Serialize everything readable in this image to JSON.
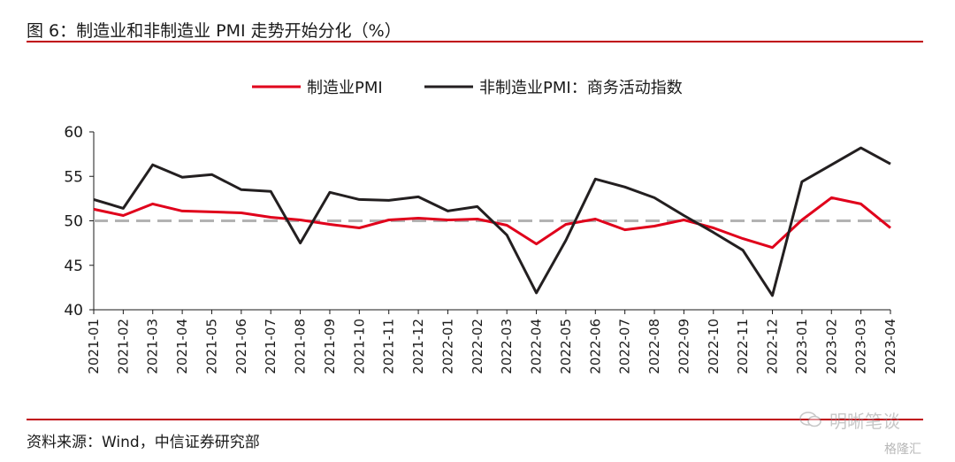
{
  "header": {
    "title": "图 6：制造业和非制造业 PMI 走势开始分化（%）"
  },
  "footer": {
    "source": "资料来源：Wind，中信证券研究部"
  },
  "watermark": {
    "text": "明晰笔谈",
    "sub": "格隆汇"
  },
  "chart_data": {
    "type": "line",
    "x": [
      "2021-01",
      "2021-02",
      "2021-03",
      "2021-04",
      "2021-05",
      "2021-06",
      "2021-07",
      "2021-08",
      "2021-09",
      "2021-10",
      "2021-11",
      "2021-12",
      "2022-01",
      "2022-02",
      "2022-03",
      "2022-04",
      "2022-05",
      "2022-06",
      "2022-07",
      "2022-08",
      "2022-09",
      "2022-10",
      "2022-11",
      "2022-12",
      "2023-01",
      "2023-02",
      "2023-03",
      "2023-04"
    ],
    "series": [
      {
        "name": "制造业PMI",
        "color": "#e0001b",
        "values": [
          51.3,
          50.6,
          51.9,
          51.1,
          51.0,
          50.9,
          50.4,
          50.1,
          49.6,
          49.2,
          50.1,
          50.3,
          50.1,
          50.2,
          49.5,
          47.4,
          49.6,
          50.2,
          49.0,
          49.4,
          50.1,
          49.2,
          48.0,
          47.0,
          50.1,
          52.6,
          51.9,
          49.2
        ]
      },
      {
        "name": "非制造业PMI：商务活动指数",
        "color": "#231f20",
        "values": [
          52.4,
          51.4,
          56.3,
          54.9,
          55.2,
          53.5,
          53.3,
          47.5,
          53.2,
          52.4,
          52.3,
          52.7,
          51.1,
          51.6,
          48.4,
          41.9,
          47.8,
          54.7,
          53.8,
          52.6,
          50.6,
          48.7,
          46.7,
          41.6,
          54.4,
          56.3,
          58.2,
          56.4
        ]
      }
    ],
    "reference_line": {
      "value": 50,
      "color": "#b3b3b3",
      "style": "dashed"
    },
    "ylim": [
      40,
      60
    ],
    "yticks": [
      40,
      45,
      50,
      55,
      60
    ],
    "legend": "top",
    "grid": false
  }
}
